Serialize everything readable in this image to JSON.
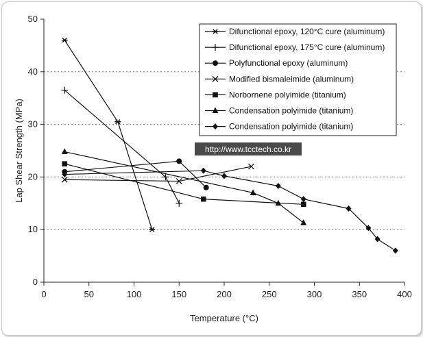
{
  "watermark": "http://www.tcctech.co.kr",
  "chart_data": {
    "type": "line",
    "title": "",
    "xlabel": "Temperature (°C)",
    "ylabel": "Lap Shear Strength (MPa)",
    "xlim": [
      0,
      400
    ],
    "ylim": [
      0,
      50
    ],
    "xticks": [
      0,
      50,
      100,
      150,
      200,
      250,
      300,
      350,
      400
    ],
    "yticks": [
      0,
      10,
      20,
      30,
      40,
      50
    ],
    "gridlines": "horizontal dotted at 10, 20, 30, 40",
    "legend_position": "top-right",
    "series": [
      {
        "name": "Difunctional epoxy, 120°C cure (aluminum)",
        "marker": "asterisk",
        "x": [
          23,
          82,
          120
        ],
        "y": [
          46,
          30.5,
          10
        ]
      },
      {
        "name": "Difunctional epoxy, 175°C cure (aluminum)",
        "marker": "plus",
        "x": [
          23,
          135,
          150
        ],
        "y": [
          36.5,
          20,
          15
        ]
      },
      {
        "name": "Polyfunctional epoxy (aluminum)",
        "marker": "circle",
        "x": [
          23,
          150,
          180
        ],
        "y": [
          21,
          23,
          18
        ]
      },
      {
        "name": "Modified bismaleimide (aluminum)",
        "marker": "x",
        "x": [
          23,
          150,
          230
        ],
        "y": [
          19.5,
          19.2,
          22
        ]
      },
      {
        "name": "Norbornene polyimide (titanium)",
        "marker": "square",
        "x": [
          23,
          177,
          288
        ],
        "y": [
          22.5,
          15.8,
          14.8
        ]
      },
      {
        "name": "Condensation polyimide (titanium)",
        "marker": "triangle",
        "x": [
          23,
          232,
          260,
          288
        ],
        "y": [
          24.8,
          17,
          15,
          11.3
        ]
      },
      {
        "name": "Condensation polyimide (titanium)",
        "marker": "diamond",
        "x": [
          23,
          177,
          200,
          260,
          288,
          338,
          360,
          370,
          390
        ],
        "y": [
          20.5,
          21.2,
          20.2,
          18.3,
          15.8,
          14,
          10.3,
          8.2,
          6
        ]
      }
    ]
  }
}
